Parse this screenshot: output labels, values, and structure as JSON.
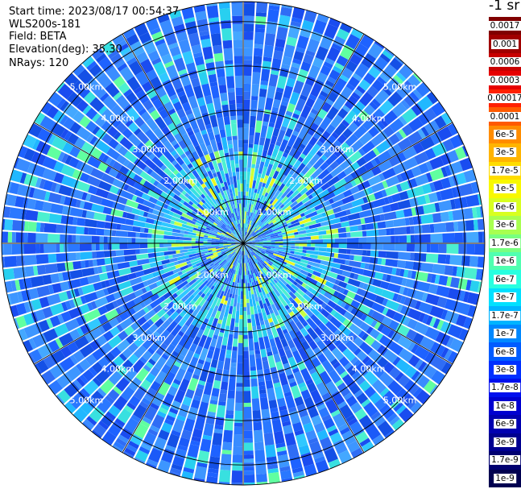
{
  "header": {
    "start_time": "Start time: 2023/08/17 00:54:37",
    "instrument": "WLS200s-181",
    "field": "Field: BETA",
    "elevation": "Elevation(deg): 35.30",
    "nrays": "NRays: 120"
  },
  "colorbar": {
    "unit": "-1 sr",
    "labels": [
      "0.0017",
      "0.001",
      "0.0006",
      "0.0003",
      "0.00017",
      "0.0001",
      "6e-5",
      "3e-5",
      "1.7e-5",
      "1e-5",
      "6e-6",
      "3e-6",
      "1.7e-6",
      "1e-6",
      "6e-7",
      "3e-7",
      "1.7e-7",
      "1e-7",
      "6e-8",
      "3e-8",
      "1.7e-8",
      "1e-8",
      "6e-9",
      "3e-9",
      "1.7e-9",
      "1e-9"
    ],
    "colors": [
      "#800000",
      "#a00000",
      "#c80000",
      "#e60000",
      "#ff2000",
      "#ff5a00",
      "#ff8c00",
      "#ffb400",
      "#ffdc00",
      "#f8f800",
      "#d8ff20",
      "#a8ff50",
      "#78ff80",
      "#50ffb0",
      "#28ffe0",
      "#00e0ff",
      "#00b4ff",
      "#0088ff",
      "#005cff",
      "#0030ff",
      "#0010ee",
      "#0000d0",
      "#0000b0",
      "#000090",
      "#000070",
      "#000050"
    ]
  },
  "chart_data": {
    "type": "heatmap",
    "subtype": "polar PPI scan",
    "field": "BETA",
    "elevation_deg": 35.3,
    "n_rays": 120,
    "range_rings_km": [
      1,
      2,
      3,
      4,
      5
    ],
    "range_ring_labels": [
      "1.00km",
      "2.00km",
      "3.00km",
      "4.00km",
      "5.00km"
    ],
    "azimuth_spokes_deg": [
      0,
      30,
      60,
      90,
      120,
      150,
      180,
      210,
      240,
      270,
      300,
      330
    ],
    "dominant_range_values": {
      "0-1km": "mixed 1e-8 to 1e-6 with 1e-5 patches",
      "1-2km": "1e-7 to 1e-6 ring (cyan/green)",
      "2-5.4km": "1e-9 to 3e-8 (blue)"
    },
    "color_scale": "logarithmic",
    "grid": true
  }
}
